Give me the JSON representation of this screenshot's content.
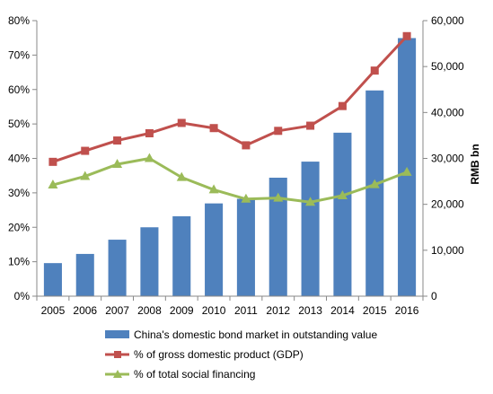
{
  "chart_data": {
    "type": "bar+line",
    "categories": [
      "2005",
      "2006",
      "2007",
      "2008",
      "2009",
      "2010",
      "2011",
      "2012",
      "2013",
      "2014",
      "2015",
      "2016"
    ],
    "bar_series": {
      "name": "China's domestic bond market in outstanding value",
      "axis": "right",
      "color": "#4F81BD",
      "values": [
        7200,
        9200,
        12300,
        15000,
        17400,
        20200,
        21200,
        25800,
        29300,
        35600,
        44800,
        56200
      ]
    },
    "line_series": [
      {
        "name": "% of gross domestic product (GDP)",
        "axis": "left",
        "color": "#C0504D",
        "marker": "square",
        "values": [
          39.0,
          42.2,
          45.2,
          47.3,
          50.3,
          48.8,
          43.8,
          48.0,
          49.5,
          55.2,
          65.5,
          75.5
        ]
      },
      {
        "name": "% of total social financing",
        "axis": "left",
        "color": "#9BBB59",
        "marker": "triangle",
        "values": [
          32.3,
          34.8,
          38.3,
          40.0,
          34.5,
          30.9,
          28.2,
          28.5,
          27.3,
          29.2,
          32.4,
          36.0
        ]
      }
    ],
    "left_axis": {
      "min": 0,
      "max": 80,
      "step": 10,
      "tick_labels": [
        "0%",
        "10%",
        "20%",
        "30%",
        "40%",
        "50%",
        "60%",
        "70%",
        "80%"
      ]
    },
    "right_axis": {
      "min": 0,
      "max": 60000,
      "step": 10000,
      "title": "RMB bn",
      "tick_labels": [
        "0",
        "10,000",
        "20,000",
        "30,000",
        "40,000",
        "50,000",
        "60,000"
      ]
    },
    "grid": false,
    "legend_position": "bottom"
  }
}
